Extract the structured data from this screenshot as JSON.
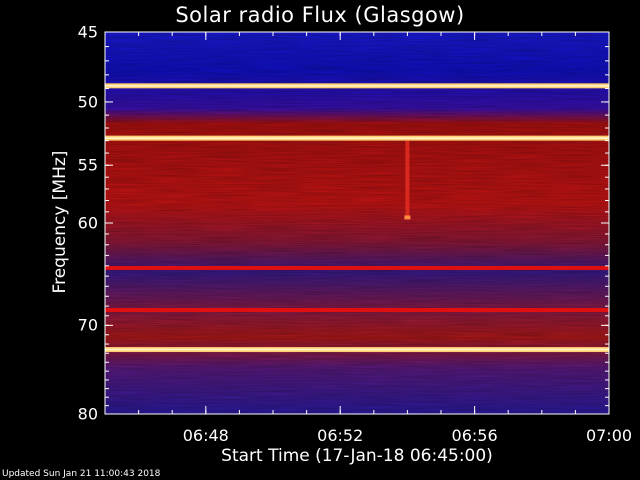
{
  "chart_data": {
    "type": "heatmap",
    "title": "Solar radio Flux (Glasgow)",
    "xlabel": "Start Time (17-Jan-18 06:45:00)",
    "ylabel": "Frequency [MHz]",
    "x_range": [
      "06:45",
      "07:00"
    ],
    "y_range": [
      45,
      80
    ],
    "y_scale": "log",
    "xticks": [
      "06:48",
      "06:52",
      "06:56",
      "07:00"
    ],
    "yticks": [
      "45",
      "50",
      "55",
      "60",
      "70",
      "80"
    ],
    "bright_bands_mhz": [
      48.8,
      52.8,
      64.2,
      68.4,
      72.6
    ],
    "burst": {
      "time": "06:54",
      "freq_range_mhz": [
        53.0,
        59.5
      ]
    },
    "footer": "Updated Sun Jan 21 11:00:43 2018"
  }
}
